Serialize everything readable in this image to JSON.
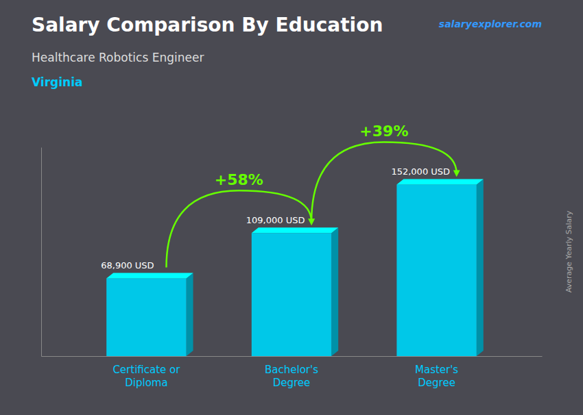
{
  "chart_data": {
    "type": "bar",
    "title": "Salary Comparison By Education",
    "subtitle": "Healthcare Robotics Engineer",
    "ylabel": "Average Yearly Salary",
    "annotations": [
      "+58%",
      "+39%",
      "Virginia",
      "salaryexplorer.com"
    ],
    "categories": [
      "Certificate or\nDiploma",
      "Bachelor's\nDegree",
      "Master's\nDegree"
    ],
    "values": [
      68900,
      109000,
      152000
    ],
    "value_labels": [
      "68,900 USD",
      "109,000 USD",
      "152,000 USD"
    ],
    "data_labels": true,
    "color": "#00c8e8",
    "ylim": [
      0,
      185000
    ],
    "grid": false,
    "tick_labels": "x"
  }
}
